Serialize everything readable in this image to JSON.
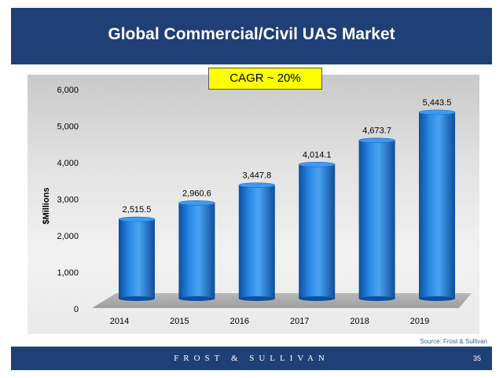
{
  "slide": {
    "title": "Global Commercial/Civil UAS Market",
    "source": "Source: Frost & Sullivan",
    "footer_brand": "FROST & SULLIVAN",
    "page_number": "35"
  },
  "annotation": "CAGR ~ 20%",
  "colors": {
    "header": "#1f3f77",
    "bar": "#1f77d0",
    "cagr_box": "#ffff00"
  },
  "chart_data": {
    "type": "bar",
    "categories": [
      "2014",
      "2015",
      "2016",
      "2017",
      "2018",
      "2019"
    ],
    "values": [
      2515.5,
      2960.6,
      3447.8,
      4014.1,
      4673.7,
      5443.5
    ],
    "data_labels": [
      "2,515.5",
      "2,960.6",
      "3,447.8",
      "4,014.1",
      "4,673.7",
      "5,443.5"
    ],
    "ylabel": "$Millions",
    "ylim": [
      0,
      6000
    ],
    "yticks": [
      0,
      1000,
      2000,
      3000,
      4000,
      5000,
      6000
    ],
    "ytick_labels": [
      "0",
      "1,000",
      "2,000",
      "3,000",
      "4,000",
      "5,000",
      "6,000"
    ],
    "grid": false,
    "legend": "none",
    "style": "3d-cylinder"
  }
}
